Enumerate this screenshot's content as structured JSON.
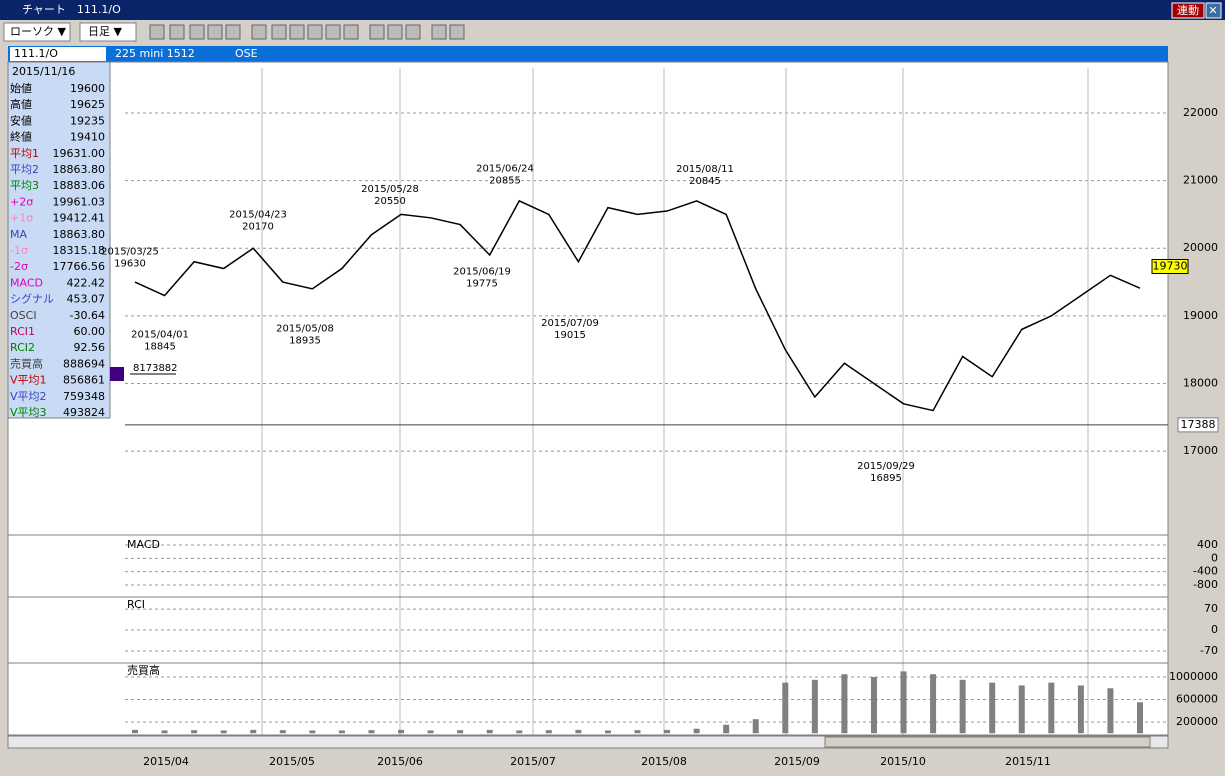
{
  "window": {
    "title": "チャート　111.1/O",
    "link_button": "連動"
  },
  "toolbar": {
    "chart_type": "ローソク ▼",
    "period": "日足 ▼"
  },
  "symbol_bar": {
    "code": "111.1/O",
    "name": "225 mini 1512",
    "exchange": "OSE"
  },
  "info_panel": {
    "date": "2015/11/16",
    "rows": [
      {
        "label": "始値",
        "value": "19600",
        "color": "#000000"
      },
      {
        "label": "高値",
        "value": "19625",
        "color": "#000000"
      },
      {
        "label": "安値",
        "value": "19235",
        "color": "#000000"
      },
      {
        "label": "終値",
        "value": "19410",
        "color": "#000000"
      },
      {
        "label": "平均1",
        "value": "19631.00",
        "color": "#c00000"
      },
      {
        "label": "平均2",
        "value": "18863.80",
        "color": "#4040c0"
      },
      {
        "label": "平均3",
        "value": "18883.06",
        "color": "#008000"
      },
      {
        "label": "+2σ",
        "value": "19961.03",
        "color": "#e000c0"
      },
      {
        "label": "+1σ",
        "value": "19412.41",
        "color": "#ff80c0"
      },
      {
        "label": "MA",
        "value": "18863.80",
        "color": "#4040c0"
      },
      {
        "label": "-1σ",
        "value": "18315.18",
        "color": "#ff80c0"
      },
      {
        "label": "-2σ",
        "value": "17766.56",
        "color": "#e000c0"
      },
      {
        "label": "MACD",
        "value": "422.42",
        "color": "#e000c0"
      },
      {
        "label": "シグナル",
        "value": "453.07",
        "color": "#4040c0"
      },
      {
        "label": "OSCI",
        "value": "-30.64",
        "color": "#404040"
      },
      {
        "label": "RCI1",
        "value": "60.00",
        "color": "#c00060"
      },
      {
        "label": "RCI2",
        "value": "92.56",
        "color": "#008000"
      },
      {
        "label": "売買高",
        "value": "888694",
        "color": "#404040"
      },
      {
        "label": "V平均1",
        "value": "856861",
        "color": "#c00000"
      },
      {
        "label": "V平均2",
        "value": "759348",
        "color": "#4040c0"
      },
      {
        "label": "V平均3",
        "value": "493824",
        "color": "#008000"
      }
    ]
  },
  "chart_data": [
    {
      "type": "line",
      "color": "#000000",
      "values": [
        19500,
        19300,
        19800,
        19700,
        20000,
        19500,
        19400,
        19700,
        20200,
        20500,
        20450,
        20350,
        19900,
        20700,
        20500,
        19800,
        20600,
        20500,
        20550,
        20700,
        20500,
        19400,
        18500,
        17800,
        18300,
        18000,
        17700,
        17600,
        18400,
        18100,
        18800,
        19000,
        19300,
        19600,
        19410
      ],
      "ylim": [
        15760,
        22665
      ],
      "yticks": [
        17000,
        18000,
        19000,
        20000,
        21000,
        22000
      ],
      "grid": true,
      "x_labels": [
        "2015/04",
        "2015/05",
        "2015/06",
        "2015/07",
        "2015/08",
        "2015/09",
        "2015/10",
        "2015/11"
      ],
      "annotations": [
        {
          "label": "2015/03/25",
          "value": 19630
        },
        {
          "label": "2015/04/01",
          "value": 18845
        },
        {
          "label": "2015/04/23",
          "value": 20170
        },
        {
          "label": "2015/05/08",
          "value": 18935
        },
        {
          "label": "2015/05/28",
          "value": 20550
        },
        {
          "label": "2015/06/19",
          "value": 19775
        },
        {
          "label": "2015/06/24",
          "value": 20855
        },
        {
          "label": "2015/07/09",
          "value": 19015
        },
        {
          "label": "2015/08/11",
          "value": 20845
        },
        {
          "label": "2015/09/29",
          "value": 16895
        }
      ],
      "last_price": 19730,
      "ref_price": 17388,
      "volume_marker": 8173882
    },
    {
      "type": "panel",
      "title": "MACD",
      "ylim": [
        -1160,
        610
      ],
      "yticks": [
        400,
        0,
        -400,
        -800
      ]
    },
    {
      "type": "panel",
      "title": "RCI",
      "ylim": [
        -110,
        107
      ],
      "yticks": [
        70,
        0,
        -70
      ]
    },
    {
      "type": "bar",
      "title": "売買高",
      "color": "#808080",
      "ylim": [
        -31111,
        1231111
      ],
      "yticks": [
        200000,
        600000,
        1000000
      ],
      "values": [
        60000,
        50000,
        55000,
        50000,
        60000,
        55000,
        50000,
        50000,
        55000,
        60000,
        50000,
        55000,
        60000,
        50000,
        55000,
        60000,
        50000,
        55000,
        60000,
        80000,
        150000,
        250000,
        900000,
        950000,
        1050000,
        1000000,
        1100000,
        1050000,
        950000,
        900000,
        850000,
        900000,
        850000,
        800000,
        550000
      ]
    }
  ]
}
